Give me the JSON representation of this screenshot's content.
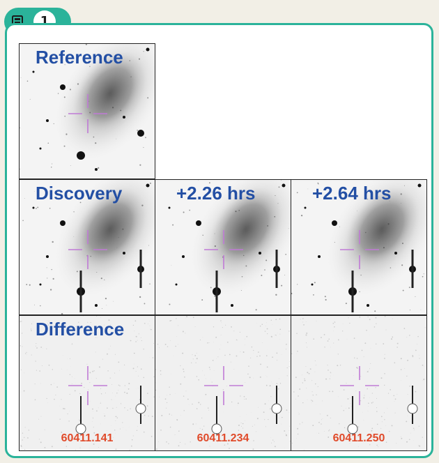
{
  "figure_number": "1",
  "icons": {
    "badge": "image-icon"
  },
  "colors": {
    "frame": "#2bb39a",
    "label": "#234fa4",
    "timestamp": "#e04a2a",
    "crosshair": "#c07ad6"
  },
  "rows": {
    "reference": {
      "label": "Reference"
    },
    "discovery": {
      "labels": [
        "Discovery",
        "+2.26 hrs",
        "+2.64 hrs"
      ]
    },
    "difference": {
      "label": "Difference",
      "timestamps": [
        "60411.141",
        "60411.234",
        "60411.250"
      ]
    }
  }
}
